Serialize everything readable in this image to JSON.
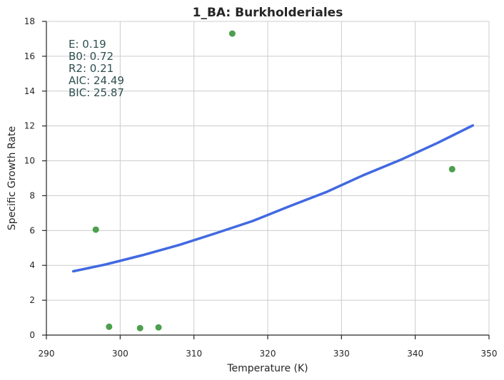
{
  "chart_data": {
    "type": "scatter",
    "title": "1_BA: Burkholderiales",
    "xlabel": "Temperature (K)",
    "ylabel": "Specific Growth Rate",
    "xlim": [
      290,
      350
    ],
    "ylim": [
      0,
      18
    ],
    "xticks": [
      290,
      300,
      310,
      320,
      330,
      340,
      350
    ],
    "yticks": [
      0,
      2,
      4,
      6,
      8,
      10,
      12,
      14,
      16,
      18
    ],
    "grid": true,
    "series": [
      {
        "kind": "scatter",
        "color": "#4c9f4c",
        "points": [
          {
            "x": 296.7,
            "y": 6.05
          },
          {
            "x": 298.5,
            "y": 0.48
          },
          {
            "x": 302.7,
            "y": 0.4
          },
          {
            "x": 305.2,
            "y": 0.44
          },
          {
            "x": 315.2,
            "y": 17.3
          },
          {
            "x": 345.0,
            "y": 9.52
          }
        ]
      },
      {
        "kind": "line",
        "color": "#4169e1",
        "points": [
          {
            "x": 293.65,
            "y": 3.66
          },
          {
            "x": 298.0,
            "y": 4.05
          },
          {
            "x": 303.0,
            "y": 4.58
          },
          {
            "x": 308.0,
            "y": 5.17
          },
          {
            "x": 313.0,
            "y": 5.85
          },
          {
            "x": 318.0,
            "y": 6.55
          },
          {
            "x": 323.0,
            "y": 7.4
          },
          {
            "x": 328.0,
            "y": 8.22
          },
          {
            "x": 333.0,
            "y": 9.18
          },
          {
            "x": 338.0,
            "y": 10.05
          },
          {
            "x": 343.0,
            "y": 11.02
          },
          {
            "x": 347.8,
            "y": 12.03
          }
        ]
      }
    ],
    "annotations": [
      "E:  0.19",
      "B0:  0.72",
      "R2:  0.21",
      "AIC: 24.49",
      "BIC: 25.87"
    ]
  }
}
